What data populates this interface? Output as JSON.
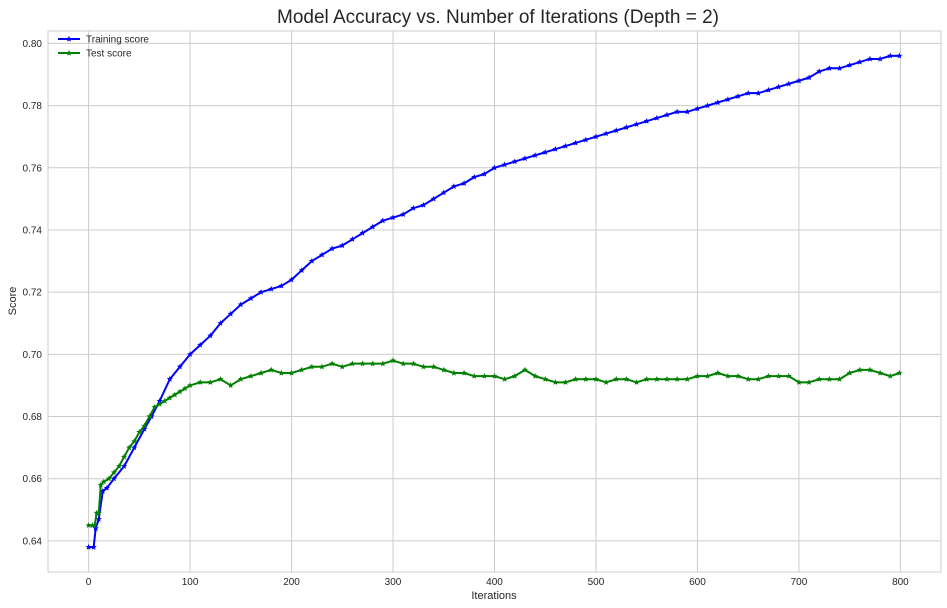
{
  "chart_data": {
    "type": "line",
    "title": "Model Accuracy vs. Number of Iterations (Depth = 2)",
    "xlabel": "Iterations",
    "ylabel": "Score",
    "xlim": [
      -40,
      840
    ],
    "ylim": [
      0.63,
      0.804
    ],
    "xticks": [
      0,
      100,
      200,
      300,
      400,
      500,
      600,
      700,
      800
    ],
    "yticks": [
      0.64,
      0.66,
      0.68,
      0.7,
      0.72,
      0.74,
      0.76,
      0.78,
      0.8
    ],
    "grid": true,
    "legend": "top-left",
    "marker": "star",
    "series": [
      {
        "name": "Training score",
        "color": "#0000ff",
        "x": [
          0,
          5,
          7,
          10,
          14,
          18,
          25,
          35,
          45,
          55,
          62,
          70,
          80,
          90,
          100,
          110,
          120,
          130,
          140,
          150,
          160,
          170,
          180,
          190,
          200,
          210,
          220,
          230,
          240,
          250,
          260,
          270,
          280,
          290,
          300,
          310,
          320,
          330,
          340,
          350,
          360,
          370,
          380,
          390,
          400,
          410,
          420,
          430,
          440,
          450,
          460,
          470,
          480,
          490,
          500,
          510,
          520,
          530,
          540,
          550,
          560,
          570,
          580,
          590,
          600,
          610,
          620,
          630,
          640,
          650,
          660,
          670,
          680,
          690,
          700,
          710,
          720,
          730,
          740,
          750,
          760,
          770,
          780,
          790,
          799
        ],
        "y": [
          0.638,
          0.638,
          0.644,
          0.647,
          0.656,
          0.657,
          0.66,
          0.664,
          0.67,
          0.676,
          0.68,
          0.685,
          0.692,
          0.696,
          0.7,
          0.703,
          0.706,
          0.71,
          0.713,
          0.716,
          0.718,
          0.72,
          0.721,
          0.722,
          0.724,
          0.727,
          0.73,
          0.732,
          0.734,
          0.735,
          0.737,
          0.739,
          0.741,
          0.743,
          0.744,
          0.745,
          0.747,
          0.748,
          0.75,
          0.752,
          0.754,
          0.755,
          0.757,
          0.758,
          0.76,
          0.761,
          0.762,
          0.763,
          0.764,
          0.765,
          0.766,
          0.767,
          0.768,
          0.769,
          0.77,
          0.771,
          0.772,
          0.773,
          0.774,
          0.775,
          0.776,
          0.777,
          0.778,
          0.778,
          0.779,
          0.78,
          0.781,
          0.782,
          0.783,
          0.784,
          0.784,
          0.785,
          0.786,
          0.787,
          0.788,
          0.789,
          0.791,
          0.792,
          0.792,
          0.793,
          0.794,
          0.795,
          0.795,
          0.796,
          0.796
        ]
      },
      {
        "name": "Test score",
        "color": "#008000",
        "x": [
          0,
          4,
          6,
          8,
          10,
          12,
          15,
          20,
          25,
          30,
          35,
          40,
          45,
          50,
          55,
          60,
          65,
          70,
          75,
          80,
          85,
          90,
          95,
          100,
          110,
          120,
          130,
          140,
          150,
          160,
          170,
          180,
          190,
          200,
          210,
          220,
          230,
          240,
          250,
          260,
          270,
          280,
          290,
          300,
          310,
          320,
          330,
          340,
          350,
          360,
          370,
          380,
          390,
          400,
          410,
          420,
          430,
          440,
          450,
          460,
          470,
          480,
          490,
          500,
          510,
          520,
          530,
          540,
          550,
          560,
          570,
          580,
          590,
          600,
          610,
          620,
          630,
          640,
          650,
          660,
          670,
          680,
          690,
          700,
          710,
          720,
          730,
          740,
          750,
          760,
          770,
          780,
          790,
          799
        ],
        "y": [
          0.645,
          0.645,
          0.645,
          0.649,
          0.649,
          0.658,
          0.659,
          0.66,
          0.662,
          0.664,
          0.667,
          0.67,
          0.672,
          0.675,
          0.677,
          0.68,
          0.683,
          0.684,
          0.685,
          0.686,
          0.687,
          0.688,
          0.689,
          0.69,
          0.691,
          0.691,
          0.692,
          0.69,
          0.692,
          0.693,
          0.694,
          0.695,
          0.694,
          0.694,
          0.695,
          0.696,
          0.696,
          0.697,
          0.696,
          0.697,
          0.697,
          0.697,
          0.697,
          0.698,
          0.697,
          0.697,
          0.696,
          0.696,
          0.695,
          0.694,
          0.694,
          0.693,
          0.693,
          0.693,
          0.692,
          0.693,
          0.695,
          0.693,
          0.692,
          0.691,
          0.691,
          0.692,
          0.692,
          0.692,
          0.691,
          0.692,
          0.692,
          0.691,
          0.692,
          0.692,
          0.692,
          0.692,
          0.692,
          0.693,
          0.693,
          0.694,
          0.693,
          0.693,
          0.692,
          0.692,
          0.693,
          0.693,
          0.693,
          0.691,
          0.691,
          0.692,
          0.692,
          0.692,
          0.694,
          0.695,
          0.695,
          0.694,
          0.693,
          0.694
        ]
      }
    ]
  }
}
